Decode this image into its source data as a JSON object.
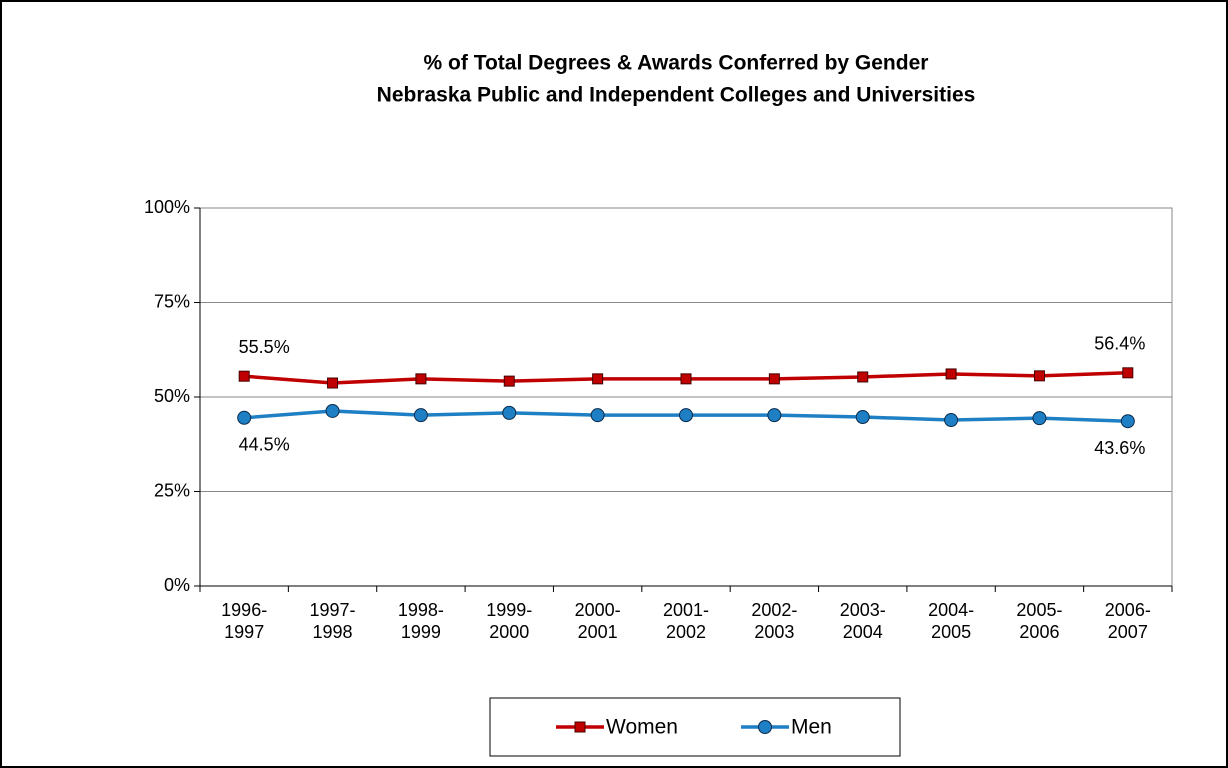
{
  "chart_data": {
    "type": "line",
    "title": "% of Total Degrees & Awards Conferred by Gender",
    "subtitle": "Nebraska Public and Independent Colleges and Universities",
    "categories": [
      "1996-1997",
      "1997-1998",
      "1998-1999",
      "1999-2000",
      "2000-2001",
      "2001-2002",
      "2002-2003",
      "2003-2004",
      "2004-2005",
      "2005-2006",
      "2006-2007"
    ],
    "series": [
      {
        "name": "Women",
        "color": "#c00000",
        "marker": "square",
        "values": [
          55.5,
          53.7,
          54.8,
          54.2,
          54.8,
          54.8,
          54.8,
          55.3,
          56.1,
          55.6,
          56.4
        ],
        "value_labels": [
          "55.5%",
          null,
          null,
          null,
          null,
          null,
          null,
          null,
          null,
          null,
          "56.4%"
        ]
      },
      {
        "name": "Men",
        "color": "#1f7fc4",
        "marker": "circle",
        "values": [
          44.5,
          46.3,
          45.2,
          45.8,
          45.2,
          45.2,
          45.2,
          44.7,
          43.9,
          44.4,
          43.6
        ],
        "value_labels": [
          "44.5%",
          null,
          null,
          null,
          null,
          null,
          null,
          null,
          null,
          null,
          "43.6%"
        ]
      }
    ],
    "ylim": [
      0,
      100
    ],
    "yticks": [
      {
        "value": 0,
        "label": "0%"
      },
      {
        "value": 25,
        "label": "25%"
      },
      {
        "value": 50,
        "label": "50%"
      },
      {
        "value": 75,
        "label": "75%"
      },
      {
        "value": 100,
        "label": "100%"
      }
    ],
    "grid": true,
    "legend": "bottom"
  }
}
